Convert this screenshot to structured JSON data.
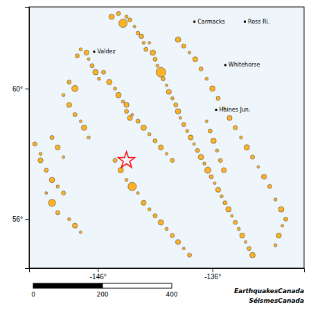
{
  "chart_data": {
    "type": "scatter",
    "xlim": [
      -152,
      -128
    ],
    "ylim": [
      54.5,
      62.5
    ],
    "xticks": [
      {
        "value": -146,
        "label": "-146°"
      },
      {
        "value": -136,
        "label": "-136°"
      }
    ],
    "yticks": [
      {
        "value": 56,
        "label": "56°"
      },
      {
        "value": 60,
        "label": "60°"
      }
    ],
    "color": "#FFA500",
    "x": [
      -144.8,
      -144.2,
      -143.8,
      -143.5,
      -143.2,
      -142.8,
      -142.5,
      -142.2,
      -142.0,
      -141.8,
      -141.5,
      -141.2,
      -141.0,
      -140.8,
      -140.5,
      -140.3,
      -140.0,
      -139.8,
      -139.5,
      -139.2,
      -139.0,
      -138.8,
      -138.5,
      -138.2,
      -137.9,
      -137.6,
      -137.3,
      -137.0,
      -136.7,
      -136.4,
      -136.1,
      -135.8,
      -135.5,
      -135.2,
      -134.9,
      -134.6,
      -134.3,
      -134.0,
      -133.7,
      -133.4,
      -133.1,
      -132.8,
      -132.5,
      -147.8,
      -147.5,
      -147.0,
      -146.8,
      -146.5,
      -146.2,
      -145.9,
      -148.5,
      -148.0,
      -149.0,
      -148.5,
      -148.0,
      -147.5,
      -147.2,
      -146.8,
      -150.0,
      -149.5,
      -149.0,
      -150.5,
      -150.0,
      -149.5,
      -149.0,
      -151.0,
      -150.5,
      -150.0,
      -149.5,
      -148.5,
      -148.0,
      -147.5,
      -144.5,
      -144.0,
      -143.5,
      -143.0,
      -142.5,
      -142.0,
      -141.5,
      -141.0,
      -140.5,
      -140.0,
      -139.5,
      -139.0,
      -138.5,
      -138.0,
      -130.5,
      -130.2,
      -129.9,
      -129.6,
      -130.0,
      -130.5,
      -131.0,
      -131.5,
      -132.0,
      -132.5,
      -133.0,
      -133.5,
      -134.0,
      -134.5,
      -135.0,
      -135.5,
      -136.0,
      -136.5,
      -137.0,
      -137.5,
      -138.0,
      -138.5,
      -139.0,
      -151.5,
      -151.0,
      -145.5,
      -145.0,
      -144.5,
      -143.5,
      -143.0,
      -142.5,
      -142.0,
      -141.5,
      -141.0,
      -140.5,
      -140.0,
      -139.5,
      -144.2,
      -143.8,
      -143.5,
      -143.2,
      -136.5,
      -136.2,
      -135.9,
      -135.6,
      -135.3,
      -135.0
    ],
    "values": [
      62.2,
      62.3,
      62.0,
      62.2,
      62.1,
      61.9,
      61.7,
      61.6,
      61.4,
      61.2,
      61.4,
      61.1,
      60.9,
      60.7,
      60.5,
      60.3,
      60.1,
      59.9,
      59.7,
      59.5,
      59.3,
      59.1,
      58.9,
      58.7,
      58.5,
      58.3,
      58.1,
      57.9,
      57.7,
      57.5,
      57.3,
      57.1,
      56.9,
      56.7,
      56.5,
      56.3,
      56.1,
      55.9,
      55.7,
      55.5,
      55.3,
      55.1,
      54.9,
      61.0,
      61.2,
      61.1,
      60.9,
      60.7,
      60.5,
      60.3,
      60.2,
      60.0,
      59.8,
      59.5,
      59.2,
      59.0,
      58.8,
      58.5,
      58.5,
      58.2,
      57.9,
      57.5,
      57.2,
      57.0,
      56.8,
      57.8,
      56.8,
      56.5,
      56.2,
      56.0,
      55.8,
      55.6,
      57.8,
      57.5,
      57.2,
      57.0,
      56.8,
      56.5,
      56.3,
      56.1,
      55.9,
      55.7,
      55.5,
      55.3,
      55.1,
      54.9,
      55.2,
      55.5,
      55.8,
      56.0,
      56.3,
      56.6,
      57.0,
      57.3,
      57.6,
      57.9,
      58.2,
      58.5,
      58.8,
      59.1,
      59.4,
      59.7,
      60.0,
      60.3,
      60.6,
      60.9,
      61.1,
      61.3,
      61.5,
      58.3,
      58.0,
      60.5,
      60.2,
      60.0,
      59.5,
      59.2,
      59.0,
      58.8,
      58.6,
      58.4,
      58.2,
      58.0,
      57.8,
      59.8,
      59.6,
      59.3,
      59.1,
      59.0,
      58.7,
      58.4,
      58.1,
      57.8,
      57.5
    ],
    "sizes": [
      5.8,
      5.5,
      6.5,
      5.3,
      5.5,
      5.2,
      5.4,
      5.6,
      5.3,
      5.5,
      5.2,
      5.8,
      5.5,
      5.3,
      6.8,
      5.5,
      5.2,
      5.7,
      5.3,
      5.5,
      5.8,
      5.2,
      5.5,
      5.3,
      5.7,
      5.2,
      5.5,
      5.8,
      5.3,
      6.0,
      5.5,
      5.2,
      5.7,
      5.3,
      5.5,
      5.8,
      5.2,
      5.5,
      5.3,
      5.7,
      5.2,
      5.5,
      5.8,
      5.5,
      5.3,
      5.7,
      5.2,
      5.5,
      5.8,
      5.3,
      5.5,
      6.0,
      5.3,
      5.7,
      5.5,
      5.2,
      5.8,
      5.3,
      5.5,
      5.7,
      5.2,
      5.5,
      5.8,
      5.3,
      5.5,
      5.7,
      5.2,
      6.2,
      5.5,
      5.3,
      5.7,
      5.2,
      5.5,
      5.8,
      5.3,
      6.5,
      5.2,
      5.7,
      5.3,
      5.5,
      5.8,
      5.3,
      5.5,
      5.7,
      5.2,
      5.5,
      5.3,
      5.7,
      5.2,
      5.5,
      5.8,
      5.3,
      5.5,
      5.7,
      5.2,
      5.5,
      5.8,
      5.3,
      5.5,
      5.7,
      5.2,
      5.5,
      5.8,
      5.3,
      5.5,
      5.7,
      5.2,
      5.5,
      5.8,
      5.5,
      5.3,
      5.5,
      5.8,
      5.3,
      5.7,
      5.2,
      5.5,
      5.8,
      5.3,
      5.5,
      5.7,
      5.2,
      5.5,
      5.8,
      5.3,
      5.5,
      5.7,
      5.2,
      5.5,
      5.8,
      5.3,
      5.5,
      5.7
    ],
    "markers": [
      {
        "x": -143.5,
        "y": 57.8,
        "marker": "star",
        "color": "red"
      }
    ],
    "annotations": [
      {
        "text": "Valdez",
        "x": -146.05,
        "y": 61.13
      },
      {
        "text": "Carmacks",
        "x": -137.3,
        "y": 62.05
      },
      {
        "text": "Ross Ri.",
        "x": -132.9,
        "y": 62.05
      },
      {
        "text": "Haines Jun.",
        "x": -135.4,
        "y": 59.35
      },
      {
        "text": "Whitehorse",
        "x": -134.6,
        "y": 60.72
      }
    ],
    "scale_bar": [
      0,
      200,
      400
    ],
    "credits": [
      "EarthquakesCanada",
      "SéismesCanada"
    ]
  }
}
